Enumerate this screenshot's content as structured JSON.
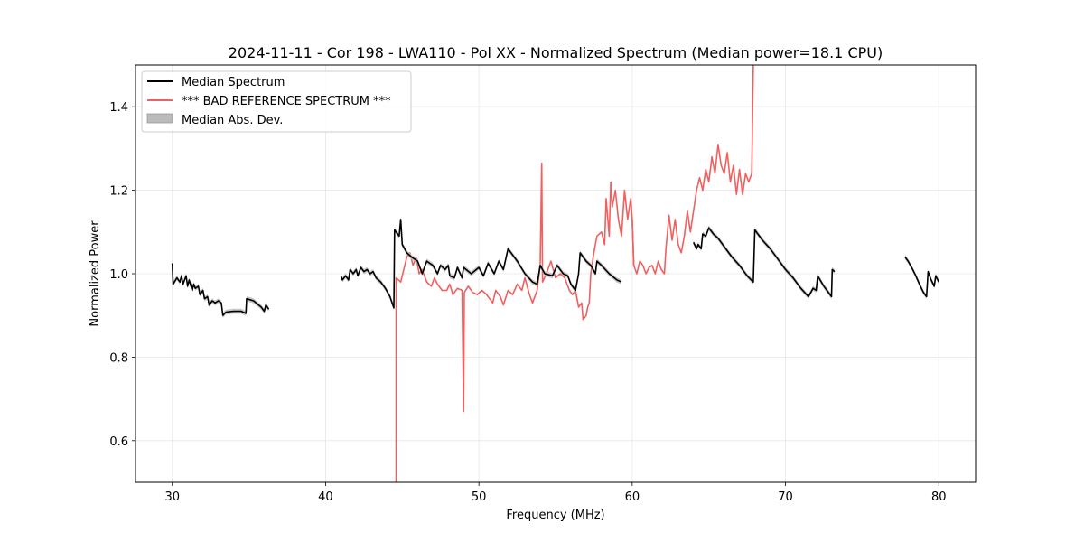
{
  "chart_data": {
    "type": "line",
    "title": "2024-11-11 - Cor 198 - LWA110 - Pol XX - Normalized Spectrum (Median power=18.1 CPU)",
    "xlabel": "Frequency (MHz)",
    "ylabel": "Normalized Power",
    "xlim": [
      27.6,
      82.4
    ],
    "ylim": [
      0.5,
      1.5
    ],
    "xticks": [
      30,
      40,
      50,
      60,
      70,
      80
    ],
    "yticks": [
      0.6,
      0.8,
      1.0,
      1.2,
      1.4
    ],
    "xtick_labels": [
      "30",
      "40",
      "50",
      "60",
      "70",
      "80"
    ],
    "ytick_labels": [
      "0.6",
      "0.8",
      "1.0",
      "1.2",
      "1.4"
    ],
    "grid": true,
    "legend_position": "top-left",
    "legend": [
      {
        "label": "Median Spectrum",
        "kind": "line",
        "color": "#000000"
      },
      {
        "label": "*** BAD REFERENCE SPECTRUM ***",
        "kind": "line",
        "color": "#f06060"
      },
      {
        "label": "Median Abs. Dev.",
        "kind": "band",
        "color": "#bbbbbb"
      }
    ],
    "series": [
      {
        "name": "Median Spectrum",
        "color": "#000000",
        "mad": 0.006,
        "segments": [
          [
            [
              30.0,
              1.025
            ],
            [
              30.05,
              0.975
            ],
            [
              30.3,
              0.99
            ],
            [
              30.5,
              0.98
            ],
            [
              30.6,
              0.995
            ],
            [
              30.7,
              0.975
            ],
            [
              30.9,
              0.995
            ],
            [
              31.0,
              0.97
            ],
            [
              31.1,
              0.985
            ],
            [
              31.3,
              0.96
            ],
            [
              31.4,
              0.975
            ],
            [
              31.5,
              0.965
            ],
            [
              31.7,
              0.97
            ],
            [
              31.8,
              0.95
            ],
            [
              32.0,
              0.96
            ],
            [
              32.1,
              0.94
            ],
            [
              32.3,
              0.945
            ],
            [
              32.4,
              0.925
            ],
            [
              32.6,
              0.935
            ],
            [
              32.8,
              0.93
            ],
            [
              33.0,
              0.935
            ],
            [
              33.2,
              0.93
            ],
            [
              33.3,
              0.9
            ],
            [
              33.5,
              0.908
            ],
            [
              34.0,
              0.91
            ],
            [
              34.5,
              0.91
            ],
            [
              34.8,
              0.905
            ],
            [
              34.85,
              0.94
            ],
            [
              35.3,
              0.935
            ],
            [
              35.8,
              0.92
            ],
            [
              36.0,
              0.91
            ],
            [
              36.1,
              0.925
            ],
            [
              36.3,
              0.915
            ]
          ],
          [
            [
              41.0,
              0.995
            ],
            [
              41.1,
              0.985
            ],
            [
              41.3,
              0.995
            ],
            [
              41.5,
              0.985
            ],
            [
              41.6,
              1.01
            ],
            [
              41.8,
              1.0
            ],
            [
              42.0,
              1.01
            ],
            [
              42.1,
              0.995
            ],
            [
              42.3,
              1.015
            ],
            [
              42.5,
              1.005
            ],
            [
              42.7,
              1.01
            ],
            [
              42.9,
              1.0
            ],
            [
              43.1,
              1.005
            ],
            [
              43.3,
              0.99
            ],
            [
              43.6,
              0.98
            ],
            [
              43.9,
              0.965
            ],
            [
              44.2,
              0.945
            ],
            [
              44.45,
              0.918
            ],
            [
              44.5,
              1.105
            ],
            [
              44.8,
              1.09
            ],
            [
              44.9,
              1.13
            ],
            [
              45.0,
              1.07
            ],
            [
              45.3,
              1.05
            ],
            [
              45.6,
              1.04
            ],
            [
              46.0,
              1.03
            ],
            [
              46.3,
              1.0
            ],
            [
              46.6,
              1.03
            ],
            [
              47.0,
              1.02
            ],
            [
              47.3,
              1.0
            ],
            [
              47.5,
              1.02
            ],
            [
              47.8,
              1.01
            ],
            [
              48.0,
              1.02
            ],
            [
              48.1,
              0.995
            ],
            [
              48.4,
              0.99
            ],
            [
              48.6,
              1.015
            ],
            [
              48.9,
              0.99
            ],
            [
              49.0,
              1.015
            ],
            [
              49.5,
              1.0
            ],
            [
              50.0,
              1.015
            ],
            [
              50.3,
              0.995
            ],
            [
              50.6,
              1.025
            ],
            [
              51.0,
              1.0
            ],
            [
              51.3,
              1.03
            ],
            [
              51.6,
              1.01
            ],
            [
              51.9,
              1.06
            ],
            [
              52.5,
              1.03
            ],
            [
              53.0,
              1.0
            ],
            [
              53.5,
              0.98
            ],
            [
              53.8,
              0.975
            ],
            [
              54.0,
              1.02
            ],
            [
              54.3,
              1.0
            ],
            [
              54.8,
              0.995
            ],
            [
              55.1,
              1.02
            ],
            [
              55.5,
              1.0
            ],
            [
              55.8,
              0.995
            ],
            [
              56.0,
              0.975
            ],
            [
              56.3,
              0.96
            ],
            [
              56.5,
              1.0
            ],
            [
              56.6,
              1.05
            ],
            [
              57.0,
              1.03
            ],
            [
              57.3,
              1.02
            ],
            [
              57.6,
              1.0
            ],
            [
              57.7,
              1.03
            ],
            [
              58.0,
              1.02
            ],
            [
              58.5,
              1.0
            ],
            [
              59.0,
              0.985
            ],
            [
              59.3,
              0.98
            ]
          ],
          [
            [
              64.0,
              1.075
            ],
            [
              64.2,
              1.06
            ],
            [
              64.3,
              1.07
            ],
            [
              64.5,
              1.06
            ],
            [
              64.6,
              1.095
            ],
            [
              64.8,
              1.09
            ],
            [
              65.0,
              1.11
            ],
            [
              65.3,
              1.095
            ],
            [
              65.6,
              1.085
            ],
            [
              66.0,
              1.065
            ],
            [
              66.5,
              1.04
            ],
            [
              67.0,
              1.02
            ],
            [
              67.5,
              0.995
            ],
            [
              67.9,
              0.98
            ],
            [
              68.0,
              1.105
            ],
            [
              68.5,
              1.08
            ],
            [
              69.0,
              1.06
            ],
            [
              69.5,
              1.035
            ],
            [
              70.0,
              1.01
            ],
            [
              70.5,
              0.99
            ],
            [
              71.0,
              0.965
            ],
            [
              71.5,
              0.945
            ],
            [
              71.8,
              0.965
            ],
            [
              72.0,
              0.96
            ],
            [
              72.1,
              0.995
            ],
            [
              72.5,
              0.97
            ],
            [
              73.0,
              0.945
            ],
            [
              73.05,
              1.01
            ],
            [
              73.2,
              1.005
            ]
          ],
          [
            [
              77.8,
              1.04
            ],
            [
              78.0,
              1.03
            ],
            [
              78.3,
              1.01
            ],
            [
              78.5,
              0.995
            ],
            [
              78.8,
              0.97
            ],
            [
              79.0,
              0.955
            ],
            [
              79.2,
              0.945
            ],
            [
              79.3,
              1.005
            ],
            [
              79.5,
              0.985
            ],
            [
              79.7,
              0.97
            ],
            [
              79.8,
              0.995
            ],
            [
              80.0,
              0.98
            ]
          ]
        ]
      },
      {
        "name": "*** BAD REFERENCE SPECTRUM ***",
        "color": "#f06060",
        "segments": [
          [
            [
              44.6,
              0.5
            ],
            [
              44.6,
              0.99
            ],
            [
              44.9,
              0.98
            ],
            [
              45.1,
              1.01
            ],
            [
              45.3,
              1.04
            ],
            [
              45.5,
              1.05
            ],
            [
              45.7,
              1.02
            ],
            [
              45.9,
              1.04
            ],
            [
              46.1,
              1.0
            ],
            [
              46.3,
              1.01
            ],
            [
              46.6,
              0.98
            ],
            [
              46.9,
              0.97
            ],
            [
              47.1,
              0.99
            ],
            [
              47.3,
              0.975
            ],
            [
              47.6,
              0.96
            ],
            [
              47.9,
              0.96
            ],
            [
              48.1,
              0.975
            ],
            [
              48.3,
              0.95
            ],
            [
              48.6,
              0.965
            ],
            [
              48.9,
              0.96
            ],
            [
              49.0,
              0.67
            ],
            [
              49.05,
              0.955
            ],
            [
              49.3,
              0.97
            ],
            [
              49.6,
              0.955
            ],
            [
              49.9,
              0.95
            ],
            [
              50.2,
              0.96
            ],
            [
              50.5,
              0.95
            ],
            [
              50.7,
              0.94
            ],
            [
              50.9,
              0.93
            ],
            [
              51.1,
              0.96
            ],
            [
              51.4,
              0.945
            ],
            [
              51.6,
              0.925
            ],
            [
              51.9,
              0.96
            ],
            [
              52.2,
              0.95
            ],
            [
              52.5,
              0.975
            ],
            [
              52.8,
              0.96
            ],
            [
              53.0,
              0.99
            ],
            [
              53.3,
              0.95
            ],
            [
              53.5,
              0.93
            ],
            [
              53.8,
              0.96
            ],
            [
              54.0,
              1.02
            ],
            [
              54.1,
              1.265
            ],
            [
              54.15,
              0.98
            ],
            [
              54.4,
              1.0
            ],
            [
              54.7,
              1.03
            ],
            [
              55.0,
              0.99
            ],
            [
              55.3,
              1.0
            ],
            [
              55.6,
              0.99
            ],
            [
              55.9,
              0.96
            ],
            [
              56.1,
              0.95
            ],
            [
              56.3,
              0.96
            ],
            [
              56.5,
              0.92
            ],
            [
              56.7,
              0.93
            ],
            [
              56.8,
              0.89
            ],
            [
              57.0,
              0.9
            ],
            [
              57.1,
              0.92
            ],
            [
              57.2,
              0.93
            ],
            [
              57.3,
              1.0
            ],
            [
              57.5,
              1.05
            ],
            [
              57.7,
              1.09
            ],
            [
              58.0,
              1.1
            ],
            [
              58.2,
              1.07
            ],
            [
              58.3,
              1.18
            ],
            [
              58.5,
              1.09
            ],
            [
              58.6,
              1.22
            ],
            [
              58.7,
              1.16
            ],
            [
              58.9,
              1.2
            ],
            [
              59.1,
              1.13
            ],
            [
              59.3,
              1.09
            ],
            [
              59.5,
              1.2
            ],
            [
              59.7,
              1.13
            ],
            [
              59.9,
              1.18
            ],
            [
              60.0,
              1.13
            ],
            [
              60.1,
              1.02
            ],
            [
              60.3,
              1.0
            ],
            [
              60.5,
              1.03
            ],
            [
              60.7,
              1.02
            ],
            [
              60.9,
              1.0
            ],
            [
              61.1,
              1.015
            ],
            [
              61.3,
              1.02
            ],
            [
              61.5,
              1.0
            ],
            [
              61.7,
              1.03
            ],
            [
              61.9,
              1.01
            ],
            [
              62.1,
              1.0
            ],
            [
              62.2,
              1.06
            ],
            [
              62.4,
              1.14
            ],
            [
              62.6,
              1.08
            ],
            [
              62.8,
              1.13
            ],
            [
              63.0,
              1.07
            ],
            [
              63.2,
              1.05
            ],
            [
              63.4,
              1.09
            ],
            [
              63.6,
              1.15
            ],
            [
              63.8,
              1.1
            ],
            [
              64.0,
              1.15
            ],
            [
              64.2,
              1.2
            ],
            [
              64.4,
              1.23
            ],
            [
              64.6,
              1.2
            ],
            [
              64.8,
              1.25
            ],
            [
              65.0,
              1.22
            ],
            [
              65.2,
              1.28
            ],
            [
              65.4,
              1.24
            ],
            [
              65.6,
              1.31
            ],
            [
              65.8,
              1.26
            ],
            [
              66.0,
              1.24
            ],
            [
              66.2,
              1.29
            ],
            [
              66.4,
              1.22
            ],
            [
              66.6,
              1.26
            ],
            [
              66.8,
              1.19
            ],
            [
              67.0,
              1.25
            ],
            [
              67.2,
              1.19
            ],
            [
              67.4,
              1.24
            ],
            [
              67.6,
              1.22
            ],
            [
              67.8,
              1.24
            ],
            [
              67.9,
              1.5
            ]
          ],
          [
            [
              60.0,
              1.13
            ],
            [
              60.1,
              1.02
            ]
          ]
        ]
      }
    ]
  }
}
